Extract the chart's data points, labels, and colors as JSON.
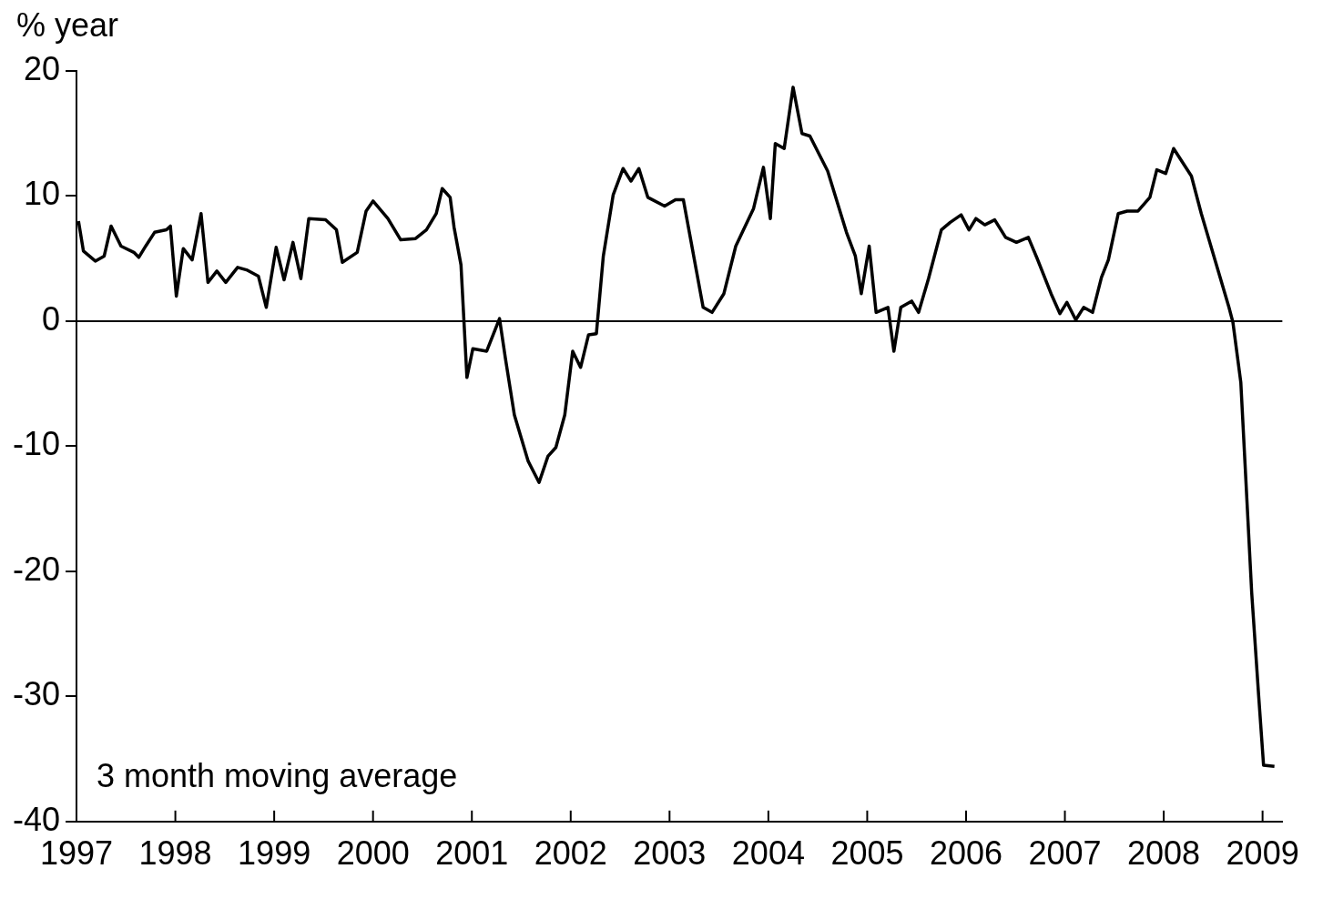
{
  "chart_data": {
    "type": "line",
    "ylabel": "% year",
    "x": [
      1997.02,
      1997.07,
      1997.19,
      1997.28,
      1997.35,
      1997.45,
      1997.58,
      1997.63,
      1997.7,
      1997.79,
      1997.91,
      1997.95,
      1998.01,
      1998.08,
      1998.17,
      1998.26,
      1998.33,
      1998.42,
      1998.51,
      1998.63,
      1998.72,
      1998.84,
      1998.92,
      1999.02,
      1999.1,
      1999.19,
      1999.27,
      1999.35,
      1999.52,
      1999.63,
      1999.69,
      1999.84,
      1999.93,
      2000.0,
      2000.15,
      2000.28,
      2000.43,
      2000.54,
      2000.64,
      2000.7,
      2000.78,
      2000.82,
      2000.89,
      2000.95,
      2001.01,
      2001.15,
      2001.28,
      2001.34,
      2001.43,
      2001.57,
      2001.68,
      2001.77,
      2001.85,
      2001.94,
      2002.02,
      2002.1,
      2002.18,
      2002.26,
      2002.33,
      2002.43,
      2002.53,
      2002.61,
      2002.69,
      2002.78,
      2002.95,
      2003.06,
      2003.14,
      2003.34,
      2003.43,
      2003.55,
      2003.67,
      2003.85,
      2003.95,
      2004.02,
      2004.07,
      2004.16,
      2004.25,
      2004.34,
      2004.42,
      2004.6,
      2004.79,
      2004.88,
      2004.94,
      2005.02,
      2005.09,
      2005.21,
      2005.27,
      2005.34,
      2005.45,
      2005.52,
      2005.62,
      2005.75,
      2005.84,
      2005.95,
      2006.03,
      2006.1,
      2006.19,
      2006.29,
      2006.4,
      2006.51,
      2006.63,
      2006.72,
      2006.86,
      2006.95,
      2007.02,
      2007.11,
      2007.19,
      2007.28,
      2007.37,
      2007.44,
      2007.54,
      2007.63,
      2007.74,
      2007.86,
      2007.93,
      2008.02,
      2008.1,
      2008.28,
      2008.38,
      2008.66,
      2008.7,
      2008.78,
      2008.89,
      2008.96,
      2009.01,
      2009.12
    ],
    "series": [
      {
        "color": "#000000",
        "values": [
          8.0,
          5.6,
          4.8,
          5.2,
          7.6,
          6.0,
          5.5,
          5.1,
          6.0,
          7.1,
          7.3,
          7.6,
          2.0,
          5.8,
          4.9,
          8.6,
          3.1,
          4.0,
          3.1,
          4.3,
          4.1,
          3.6,
          1.1,
          5.9,
          3.3,
          6.3,
          3.4,
          8.2,
          8.1,
          7.3,
          4.7,
          5.5,
          8.8,
          9.6,
          8.2,
          6.5,
          6.6,
          7.3,
          8.6,
          10.6,
          9.9,
          7.5,
          4.5,
          -4.5,
          -2.2,
          -2.4,
          0.2,
          -3.0,
          -7.5,
          -11.2,
          -12.9,
          -10.8,
          -10.1,
          -7.5,
          -2.4,
          -3.7,
          -1.1,
          -1.0,
          5.2,
          10.1,
          12.2,
          11.2,
          12.2,
          9.9,
          9.2,
          9.7,
          9.7,
          1.1,
          0.7,
          2.2,
          6.0,
          9.0,
          12.3,
          8.2,
          14.2,
          13.8,
          18.7,
          15.0,
          14.8,
          12.0,
          7.1,
          5.2,
          2.2,
          6.0,
          0.7,
          1.1,
          -2.4,
          1.1,
          1.6,
          0.7,
          3.4,
          7.3,
          7.9,
          8.5,
          7.3,
          8.2,
          7.7,
          8.1,
          6.7,
          6.3,
          6.7,
          5.0,
          2.2,
          0.6,
          1.5,
          0.1,
          1.1,
          0.7,
          3.5,
          4.9,
          8.6,
          8.8,
          8.8,
          9.9,
          12.1,
          11.8,
          13.8,
          11.6,
          8.6,
          1.1,
          -0.1,
          -4.9,
          -21.7,
          -29.9,
          -35.5,
          -35.6
        ]
      }
    ],
    "xlim": [
      1997,
      2009.2
    ],
    "xticks": [
      1997,
      1998,
      1999,
      2000,
      2001,
      2002,
      2003,
      2004,
      2005,
      2006,
      2007,
      2008,
      2009
    ],
    "ylim": [
      -40,
      20
    ],
    "yticks": [
      -40,
      -30,
      -20,
      -10,
      0,
      10,
      20
    ],
    "ref_lines": [
      {
        "axis": "y",
        "value": 0,
        "color": "#000000"
      }
    ],
    "annotations": [
      "3 month moving average"
    ],
    "grid": false,
    "legend": false,
    "marker": "none",
    "line_style": "solid"
  }
}
